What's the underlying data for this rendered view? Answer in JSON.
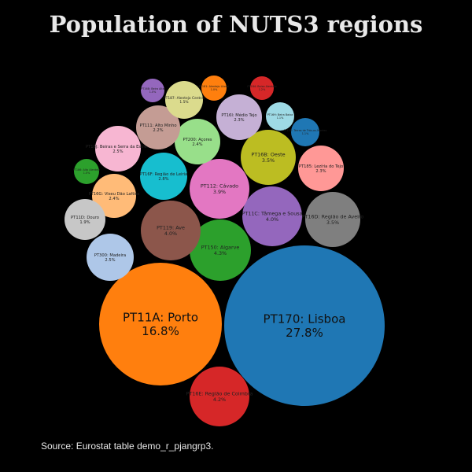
{
  "chart_data": {
    "type": "bubble",
    "title": "Population of NUTS3 regions",
    "source": "Source: Eurostat table demo_r_pjangrp3.",
    "bubbles": [
      {
        "name": "PT170: Lisboa",
        "value": "27.8%",
        "color": "#1f77b4"
      },
      {
        "name": "PT11A: Porto",
        "value": "16.8%",
        "color": "#ff7f0e"
      },
      {
        "name": "PT150: Algarve",
        "value": "4.3%",
        "color": "#2ca02c"
      },
      {
        "name": "PT16E: Região de Coimbra",
        "value": "4.2%",
        "color": "#d62728"
      },
      {
        "name": "PT11C: Tâmega e Sousa",
        "value": "4.0%",
        "color": "#9467bd"
      },
      {
        "name": "PT119: Ave",
        "value": "4.0%",
        "color": "#8c564b"
      },
      {
        "name": "PT112: Cávado",
        "value": "3.9%",
        "color": "#e377c2"
      },
      {
        "name": "PT16D: Região de Aveiro",
        "value": "3.5%",
        "color": "#7f7f7f"
      },
      {
        "name": "PT16B: Oeste",
        "value": "3.5%",
        "color": "#bcbd22"
      },
      {
        "name": "PT16F: Região de Leiria",
        "value": "2.8%",
        "color": "#17becf"
      },
      {
        "name": "PT300: Madeira",
        "value": "2.5%",
        "color": "#aec7e8"
      },
      {
        "name": "PT16J: Beiras e Serra da Estrela",
        "value": "2.5%",
        "color": "#f7b6d2"
      },
      {
        "name": "PT16G: Viseu Dão Lafões",
        "value": "2.4%",
        "color": "#ffbb78"
      },
      {
        "name": "PT200: Açores",
        "value": "2.4%",
        "color": "#98df8a"
      },
      {
        "name": "PT16I: Médio Tejo",
        "value": "2.3%",
        "color": "#c5b0d5"
      },
      {
        "name": "PT185: Lezíria do Tejo",
        "value": "2.3%",
        "color": "#ff9896"
      },
      {
        "name": "PT111: Alto Minho",
        "value": "2.2%",
        "color": "#c49c94"
      },
      {
        "name": "PT11D: Douro",
        "value": "1.9%",
        "color": "#c7c7c7"
      },
      {
        "name": "PT187: Alentejo Central",
        "value": "1.5%",
        "color": "#dbdb8d"
      },
      {
        "name": "PT16H: Beira Baixa",
        "value": "1.1%",
        "color": "#9edae5"
      },
      {
        "name": "PT11E: Terras de Trás-os-Montes",
        "value": "1.1%",
        "color": "#1f77b4"
      },
      {
        "name": "PT181: Alentejo Litoral",
        "value": "1.0%",
        "color": "#ff7f0e"
      },
      {
        "name": "PT186: Alto Alentejo",
        "value": "1.0%",
        "color": "#2ca02c"
      },
      {
        "name": "PT184: Baixo Alentejo",
        "value": "1.2%",
        "color": "#d62728"
      },
      {
        "name": "PT16B: Beira Alta",
        "value": "1.0%",
        "color": "#9467bd"
      }
    ]
  }
}
